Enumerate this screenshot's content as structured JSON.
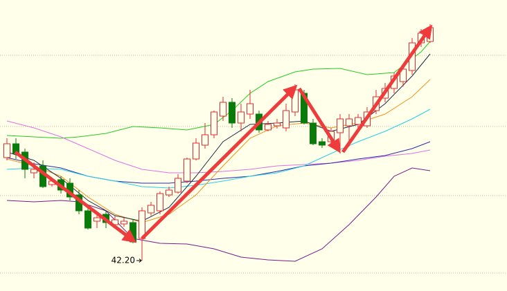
{
  "chart_data": {
    "type": "candlestick",
    "ylim": [
      41.32,
      49.74
    ],
    "yticks": [
      48.14,
      46.08,
      44.08,
      41.84
    ],
    "grid": true,
    "up_color": "#e8262e",
    "down_color": "#0a7a0a",
    "open": [
      45.18,
      45.58,
      45.34,
      44.74,
      44.94,
      44.4,
      44.54,
      44.44,
      44.1,
      43.64,
      43.34,
      43.54,
      43.24,
      43.26,
      43.3,
      42.84,
      43.58,
      43.64,
      44.1,
      44.18,
      44.5,
      45.14,
      45.54,
      45.84,
      46.38,
      46.78,
      46.18,
      46.44,
      46.44,
      45.98,
      46.1,
      46.04,
      46.5,
      47.04,
      46.18,
      45.64,
      45.64,
      45.9,
      46.1,
      46.14,
      46.1,
      46.54,
      46.9,
      47.18,
      47.38,
      47.7,
      48.5,
      48.54
    ],
    "high": [
      45.74,
      45.74,
      45.44,
      45.04,
      45.1,
      44.58,
      44.64,
      44.58,
      44.24,
      43.74,
      43.54,
      43.64,
      43.5,
      43.44,
      43.38,
      43.74,
      43.9,
      44.2,
      44.34,
      44.7,
      45.18,
      45.74,
      46.18,
      46.54,
      46.94,
      46.9,
      46.74,
      47.14,
      46.54,
      46.24,
      46.3,
      46.74,
      47.3,
      47.14,
      46.3,
      45.74,
      46.04,
      46.44,
      46.44,
      46.44,
      46.64,
      47.14,
      47.34,
      47.64,
      47.84,
      48.64,
      48.9,
      49.04
    ],
    "low": [
      45.1,
      45.14,
      44.58,
      44.58,
      44.3,
      44.34,
      44.14,
      43.94,
      43.54,
      43.1,
      43.14,
      43.14,
      43.14,
      43.18,
      42.7,
      42.2,
      43.5,
      43.54,
      44.04,
      44.14,
      44.44,
      45.1,
      45.44,
      45.74,
      46.24,
      46.04,
      45.94,
      46.3,
      45.9,
      45.94,
      46.02,
      45.94,
      46.38,
      46.14,
      45.54,
      45.46,
      45.54,
      45.3,
      45.5,
      46.04,
      46.04,
      46.44,
      46.78,
      47.04,
      47.24,
      47.58,
      48.38,
      48.5
    ],
    "close": [
      45.58,
      45.3,
      44.84,
      44.84,
      44.34,
      44.5,
      44.24,
      44.04,
      43.64,
      43.14,
      43.44,
      43.3,
      43.38,
      43.34,
      42.74,
      43.64,
      43.8,
      44.14,
      44.24,
      44.58,
      45.14,
      45.6,
      45.84,
      46.5,
      46.78,
      46.18,
      46.5,
      46.74,
      45.98,
      46.14,
      46.18,
      46.54,
      47.14,
      46.18,
      45.58,
      45.54,
      45.94,
      46.3,
      46.3,
      46.34,
      46.5,
      46.94,
      47.18,
      47.54,
      47.74,
      48.5,
      48.78,
      48.94
    ],
    "lines": [
      {
        "color": "#22cc22",
        "x": [
          0,
          3,
          6,
          8,
          11,
          14,
          17,
          20,
          23,
          25,
          27,
          29,
          32,
          34,
          37,
          40,
          43,
          46,
          47
        ],
        "values": [
          45.82,
          45.78,
          45.74,
          45.78,
          45.88,
          46.08,
          46.04,
          45.98,
          46.14,
          46.54,
          47.04,
          47.38,
          47.66,
          47.74,
          47.76,
          47.58,
          47.64,
          48.24,
          48.54
        ]
      },
      {
        "color": "#7a1a8a",
        "x": [
          0,
          3,
          6,
          8,
          11,
          14,
          17,
          20,
          23,
          26,
          29,
          32,
          35,
          38,
          41,
          43,
          45,
          47
        ],
        "values": [
          43.94,
          43.9,
          43.94,
          43.9,
          43.64,
          42.84,
          42.7,
          42.68,
          42.54,
          42.3,
          42.22,
          42.18,
          42.54,
          43.24,
          44.04,
          44.64,
          44.88,
          44.8
        ]
      },
      {
        "color": "#e070e0",
        "x": [
          0,
          3,
          6,
          9,
          12,
          15,
          18,
          21,
          24,
          27,
          30,
          33,
          36,
          39,
          42,
          45,
          47
        ],
        "values": [
          46.24,
          46.04,
          45.78,
          45.44,
          45.1,
          44.84,
          44.74,
          44.74,
          44.78,
          44.84,
          44.94,
          44.98,
          45.02,
          45.1,
          45.22,
          45.3,
          45.4
        ]
      },
      {
        "color": "#2a2aa8",
        "x": [
          0,
          3,
          6,
          9,
          12,
          15,
          18,
          21,
          24,
          27,
          30,
          33,
          36,
          39,
          42,
          45,
          47
        ],
        "values": [
          45.18,
          45.0,
          44.88,
          44.64,
          44.5,
          44.44,
          44.44,
          44.5,
          44.58,
          44.64,
          44.78,
          44.94,
          45.02,
          45.14,
          45.24,
          45.44,
          45.64
        ]
      },
      {
        "color": "#22d0e8",
        "x": [
          0,
          3,
          6,
          9,
          12,
          15,
          18,
          21,
          24,
          27,
          30,
          33,
          36,
          39,
          42,
          45,
          47
        ],
        "values": [
          44.84,
          44.88,
          44.84,
          44.64,
          44.5,
          44.34,
          44.3,
          44.38,
          44.5,
          44.64,
          44.74,
          44.94,
          45.3,
          45.64,
          45.94,
          46.3,
          46.58
        ]
      },
      {
        "color": "#f09020",
        "x": [
          0,
          3,
          6,
          9,
          12,
          15,
          18,
          21,
          24,
          27,
          30,
          33,
          36,
          39,
          42,
          45,
          47
        ],
        "values": [
          45.14,
          44.94,
          44.64,
          44.04,
          43.54,
          43.3,
          43.54,
          44.1,
          44.94,
          45.74,
          46.1,
          46.18,
          46.04,
          46.18,
          46.44,
          46.94,
          47.44
        ]
      },
      {
        "color": "#1a2a4a",
        "x": [
          0,
          3,
          6,
          9,
          12,
          15,
          18,
          21,
          24,
          27,
          30,
          33,
          36,
          39,
          42,
          45,
          47
        ],
        "values": [
          45.34,
          45.1,
          44.58,
          43.94,
          43.5,
          43.34,
          43.74,
          44.64,
          45.64,
          46.14,
          46.18,
          46.24,
          45.94,
          46.14,
          46.74,
          47.54,
          48.18
        ]
      }
    ],
    "annotations": [
      {
        "text": "42.20"
      }
    ]
  }
}
